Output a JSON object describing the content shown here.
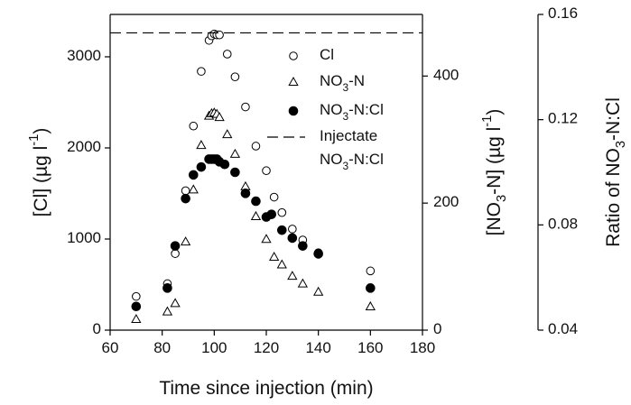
{
  "chart_data": {
    "type": "scatter",
    "xlabel": "Time since injection (min)",
    "ylabel": "[Cl] (µg l-1)",
    "y2label": "[NO3-N] (µg l-1)",
    "y3label": "Ratio of NO3-N:Cl",
    "xlim": [
      60,
      180
    ],
    "xticks": [
      60,
      80,
      100,
      120,
      140,
      160,
      180
    ],
    "ylim": [
      0,
      3465
    ],
    "yticks": [
      0,
      1000,
      2000,
      3000
    ],
    "y2lim": [
      0,
      497
    ],
    "y2ticks": [
      0,
      200,
      400
    ],
    "y3lim": [
      0.04,
      0.16
    ],
    "y3ticks": [
      0.04,
      0.08,
      0.12,
      0.16
    ],
    "series": [
      {
        "name": "Cl",
        "marker": "open-circle",
        "color": "#000000",
        "axis": "y",
        "x": [
          70,
          82,
          85,
          89,
          92,
          95,
          98,
          99,
          100,
          101,
          102,
          105,
          108,
          112,
          116,
          120,
          123,
          126,
          130,
          134,
          140,
          160
        ],
        "values": [
          370,
          510,
          840,
          1530,
          2240,
          2840,
          3180,
          3230,
          3250,
          3240,
          3240,
          3030,
          2780,
          2450,
          2020,
          1750,
          1460,
          1290,
          1110,
          990,
          850,
          650
        ]
      },
      {
        "name": "NO3-N",
        "marker": "open-triangle",
        "color": "#000000",
        "axis": "y2",
        "x": [
          70,
          82,
          85,
          89,
          92,
          95,
          98,
          99,
          100,
          101,
          102,
          105,
          108,
          112,
          116,
          120,
          123,
          126,
          130,
          134,
          140,
          160
        ],
        "values": [
          17,
          29,
          42,
          139,
          221,
          291,
          337,
          341,
          342,
          340,
          335,
          308,
          277,
          226,
          179,
          143,
          115,
          103,
          85,
          73,
          60,
          37
        ]
      },
      {
        "name": "NO3-N:Cl",
        "marker": "filled-circle",
        "color": "#000000",
        "axis": "y3",
        "x": [
          70,
          82,
          85,
          89,
          92,
          95,
          98,
          99,
          100,
          101,
          102,
          104,
          108,
          112,
          116,
          120,
          122,
          126,
          130,
          134,
          140,
          160
        ],
        "values": [
          0.049,
          0.056,
          0.072,
          0.09,
          0.099,
          0.102,
          0.105,
          0.105,
          0.105,
          0.105,
          0.104,
          0.103,
          0.1,
          0.092,
          0.089,
          0.083,
          0.084,
          0.078,
          0.075,
          0.072,
          0.069,
          0.056
        ]
      },
      {
        "name": "Injectate NO3-N:Cl",
        "marker": "dashed-line",
        "color": "#000000",
        "axis": "y3",
        "x": [
          60,
          180
        ],
        "values": [
          0.153,
          0.153
        ]
      }
    ]
  }
}
